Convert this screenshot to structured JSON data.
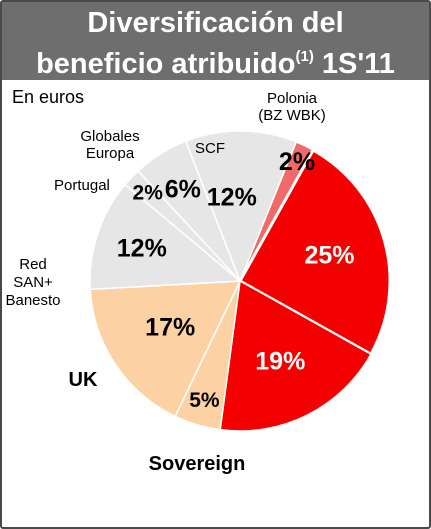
{
  "header": {
    "title_line1": "Diversificación del",
    "title_line2": "beneficio atribuido",
    "title_note": "(1)",
    "title_period": " 1S'11"
  },
  "unit_label": "En euros",
  "colors": {
    "header_bg": "#6e6e6e",
    "red": "#f50000",
    "light_red": "#ef6b6b",
    "peach": "#fcd2a4",
    "light_gray": "#e6e6e6",
    "border": "#4a4a4a"
  },
  "chart_data": {
    "type": "pie",
    "title": "Diversificación del beneficio atribuido(1) 1S'11",
    "unit": "En euros",
    "slices": [
      {
        "name": "Polonia (BZ WBK)",
        "value": 2,
        "label": "2%",
        "color": "#ef6b6b",
        "text_color": "#000000",
        "label_lines": [
          "Polonia",
          "(BZ WBK)"
        ]
      },
      {
        "name": "",
        "value": 25,
        "label": "25%",
        "color": "#f50000",
        "text_color": "#ffffff",
        "label_lines": []
      },
      {
        "name": "",
        "value": 19,
        "label": "19%",
        "color": "#f50000",
        "text_color": "#ffffff",
        "label_lines": []
      },
      {
        "name": "Sovereign",
        "value": 5,
        "label": "5%",
        "color": "#fcd2a4",
        "text_color": "#000000",
        "label_lines": [
          "Sovereign"
        ]
      },
      {
        "name": "UK",
        "value": 17,
        "label": "17%",
        "color": "#fcd2a4",
        "text_color": "#000000",
        "label_lines": [
          "UK"
        ]
      },
      {
        "name": "Red SAN+ Banesto",
        "value": 12,
        "label": "12%",
        "color": "#e6e6e6",
        "text_color": "#000000",
        "label_lines": [
          "Red",
          "SAN+",
          "Banesto"
        ]
      },
      {
        "name": "Portugal",
        "value": 2,
        "label": "2%",
        "color": "#e6e6e6",
        "text_color": "#000000",
        "label_lines": [
          "Portugal"
        ]
      },
      {
        "name": "Globales Europa",
        "value": 6,
        "label": "6%",
        "color": "#e6e6e6",
        "text_color": "#000000",
        "label_lines": [
          "Globales",
          "Europa"
        ]
      },
      {
        "name": "SCF",
        "value": 12,
        "label": "12%",
        "color": "#e6e6e6",
        "text_color": "#000000",
        "label_lines": [
          "SCF"
        ]
      }
    ]
  }
}
